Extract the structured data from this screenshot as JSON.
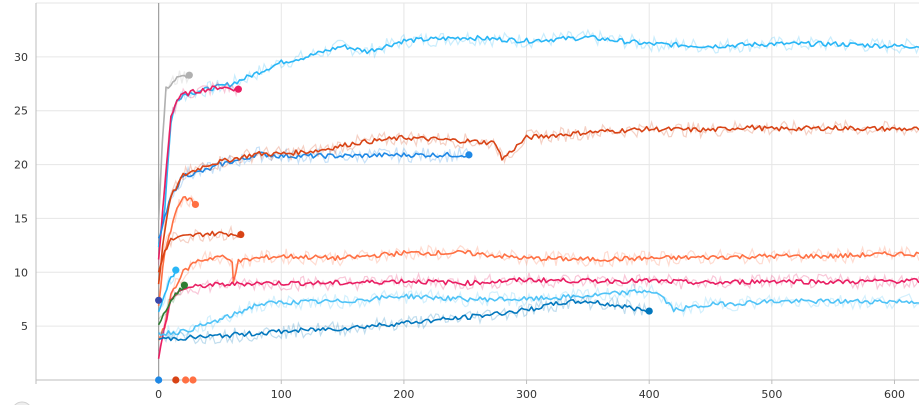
{
  "chart_data": {
    "type": "line",
    "x_ticks": [
      0,
      100,
      200,
      300,
      400,
      500,
      600
    ],
    "y_ticks": [
      5,
      10,
      15,
      20,
      25,
      30
    ],
    "xlim": [
      -100,
      620
    ],
    "ylim": [
      0,
      35
    ],
    "grid": true,
    "series": [
      {
        "color": "#29b6f6",
        "values": [
          [
            0,
            12.5
          ],
          [
            5,
            16
          ],
          [
            10,
            24
          ],
          [
            15,
            26
          ],
          [
            20,
            26.5
          ],
          [
            40,
            27
          ],
          [
            60,
            27.5
          ],
          [
            80,
            28.5
          ],
          [
            100,
            29.5
          ],
          [
            120,
            30
          ],
          [
            150,
            31
          ],
          [
            170,
            30.5
          ],
          [
            200,
            31.5
          ],
          [
            250,
            31.8
          ],
          [
            300,
            31.5
          ],
          [
            350,
            31.8
          ],
          [
            400,
            31.2
          ],
          [
            450,
            31
          ],
          [
            500,
            31.2
          ],
          [
            550,
            31.2
          ],
          [
            600,
            31
          ],
          [
            620,
            31
          ]
        ]
      },
      {
        "color": "#b0b0b0",
        "values": [
          [
            0,
            15
          ],
          [
            3,
            22
          ],
          [
            6,
            27
          ],
          [
            10,
            27.5
          ],
          [
            15,
            28
          ],
          [
            25,
            28.3
          ]
        ],
        "end_marker": true
      },
      {
        "color": "#e91e63",
        "values": [
          [
            0,
            11
          ],
          [
            5,
            18
          ],
          [
            10,
            24.5
          ],
          [
            15,
            26
          ],
          [
            20,
            26.5
          ],
          [
            30,
            26.8
          ],
          [
            40,
            27
          ],
          [
            50,
            27.2
          ],
          [
            65,
            27
          ]
        ],
        "end_marker": true
      },
      {
        "color": "#1e88e5",
        "values": [
          [
            0,
            13
          ],
          [
            5,
            15
          ],
          [
            10,
            17
          ],
          [
            20,
            19
          ],
          [
            30,
            19.2
          ],
          [
            40,
            19.5
          ],
          [
            50,
            20
          ],
          [
            60,
            20.3
          ],
          [
            70,
            20.5
          ],
          [
            80,
            21
          ],
          [
            100,
            20.8
          ],
          [
            150,
            20.8
          ],
          [
            200,
            20.9
          ],
          [
            253,
            20.9
          ]
        ],
        "end_marker": true
      },
      {
        "color": "#d84315",
        "values": [
          [
            0,
            9
          ],
          [
            5,
            14
          ],
          [
            10,
            17
          ],
          [
            20,
            19
          ],
          [
            40,
            20
          ],
          [
            60,
            20.5
          ],
          [
            80,
            21
          ],
          [
            100,
            21
          ],
          [
            130,
            21.3
          ],
          [
            160,
            22
          ],
          [
            200,
            22.5
          ],
          [
            250,
            22.2
          ],
          [
            275,
            22
          ],
          [
            280,
            20.5
          ],
          [
            300,
            22.5
          ],
          [
            350,
            23
          ],
          [
            400,
            23.3
          ],
          [
            450,
            23.2
          ],
          [
            480,
            23.5
          ],
          [
            500,
            23.3
          ],
          [
            550,
            23.4
          ],
          [
            600,
            23.3
          ],
          [
            620,
            23.3
          ]
        ]
      },
      {
        "color": "#ff7043",
        "values": [
          [
            0,
            7
          ],
          [
            5,
            12
          ],
          [
            10,
            14
          ],
          [
            15,
            16
          ],
          [
            20,
            17
          ],
          [
            25,
            16.8
          ],
          [
            30,
            16.3
          ]
        ],
        "end_marker": true
      },
      {
        "color": "#d84315",
        "values": [
          [
            0,
            10
          ],
          [
            5,
            12
          ],
          [
            10,
            13
          ],
          [
            20,
            13.3
          ],
          [
            40,
            13.6
          ],
          [
            55,
            13.6
          ],
          [
            67,
            13.5
          ]
        ],
        "end_marker": true
      },
      {
        "color": "#ff7043",
        "values": [
          [
            0,
            3.5
          ],
          [
            5,
            5
          ],
          [
            10,
            8
          ],
          [
            20,
            10
          ],
          [
            30,
            11
          ],
          [
            50,
            11.5
          ],
          [
            60,
            11
          ],
          [
            61,
            9.3
          ],
          [
            65,
            11
          ],
          [
            80,
            11.3
          ],
          [
            100,
            11.5
          ],
          [
            150,
            11.3
          ],
          [
            200,
            11.8
          ],
          [
            250,
            11.8
          ],
          [
            300,
            11.3
          ],
          [
            350,
            11.2
          ],
          [
            400,
            11.3
          ],
          [
            450,
            11.4
          ],
          [
            500,
            11.5
          ],
          [
            550,
            11.5
          ],
          [
            600,
            11.7
          ],
          [
            620,
            11.7
          ]
        ]
      },
      {
        "color": "#29b6f6",
        "values": [
          [
            0,
            6.5
          ],
          [
            5,
            8
          ],
          [
            10,
            9.5
          ],
          [
            14,
            10.2
          ]
        ],
        "end_marker": true
      },
      {
        "color": "#e91e63",
        "values": [
          [
            0,
            2
          ],
          [
            5,
            5
          ],
          [
            10,
            7.5
          ],
          [
            20,
            8.5
          ],
          [
            40,
            8.8
          ],
          [
            80,
            9
          ],
          [
            100,
            9
          ],
          [
            150,
            9
          ],
          [
            200,
            9.2
          ],
          [
            250,
            9
          ],
          [
            300,
            9.3
          ],
          [
            350,
            9.2
          ],
          [
            400,
            9.2
          ],
          [
            450,
            9
          ],
          [
            500,
            9.2
          ],
          [
            550,
            9.1
          ],
          [
            600,
            9.2
          ],
          [
            620,
            9.2
          ]
        ]
      },
      {
        "color": "#2e7d32",
        "values": [
          [
            0,
            5
          ],
          [
            10,
            7.5
          ],
          [
            21,
            8.8
          ]
        ],
        "end_marker": true
      },
      {
        "color": "#4fc3f7",
        "values": [
          [
            0,
            4.3
          ],
          [
            20,
            4.5
          ],
          [
            40,
            5.2
          ],
          [
            60,
            6
          ],
          [
            80,
            7
          ],
          [
            100,
            7.2
          ],
          [
            150,
            7.3
          ],
          [
            200,
            7.8
          ],
          [
            250,
            7.5
          ],
          [
            300,
            7.5
          ],
          [
            350,
            7.8
          ],
          [
            400,
            8.3
          ],
          [
            410,
            7.8
          ],
          [
            420,
            6.5
          ],
          [
            450,
            7
          ],
          [
            500,
            7.3
          ],
          [
            550,
            7.3
          ],
          [
            600,
            7.3
          ],
          [
            620,
            7.3
          ]
        ]
      },
      {
        "color": "#0277bd",
        "values": [
          [
            0,
            3.8
          ],
          [
            20,
            3.9
          ],
          [
            50,
            4.1
          ],
          [
            100,
            4.5
          ],
          [
            150,
            4.8
          ],
          [
            200,
            5.3
          ],
          [
            250,
            5.8
          ],
          [
            300,
            6.5
          ],
          [
            330,
            7.2
          ],
          [
            350,
            7.3
          ],
          [
            380,
            6.8
          ],
          [
            400,
            6.4
          ]
        ],
        "end_marker": true
      },
      {
        "color": "#ffffff",
        "values": [
          [
            0,
            7.4
          ]
        ],
        "end_marker": true,
        "marker_color": "#3949ab"
      },
      {
        "color": "#ffffff",
        "values": [
          [
            0,
            0
          ]
        ],
        "end_marker": true,
        "marker_color": "#1e88e5"
      },
      {
        "color": "#ffffff",
        "values": [
          [
            14,
            0
          ]
        ],
        "end_marker": true,
        "marker_color": "#d84315"
      },
      {
        "color": "#ffffff",
        "values": [
          [
            22,
            0
          ]
        ],
        "end_marker": true,
        "marker_color": "#ff7043"
      },
      {
        "color": "#ffffff",
        "values": [
          [
            28,
            0
          ]
        ],
        "end_marker": true,
        "marker_color": "#ff7043"
      }
    ]
  }
}
